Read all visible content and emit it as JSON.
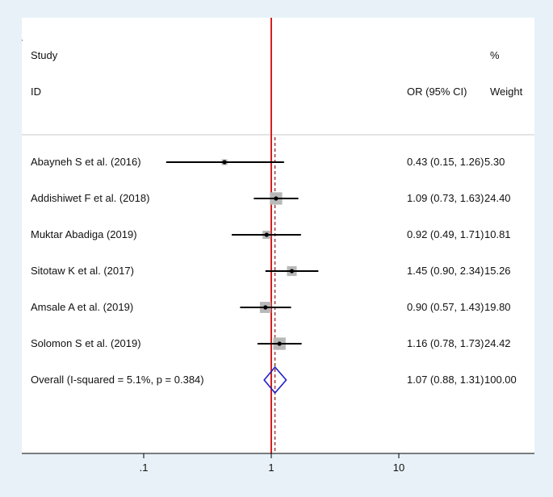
{
  "chart_data": {
    "type": "forest",
    "header": {
      "study": "Study",
      "id": "ID",
      "percent": "%",
      "or_label": "OR (95% CI)",
      "weight_label": "Weight"
    },
    "studies": [
      {
        "name": "Abayneh S et al. (2016)",
        "or": 0.43,
        "lo": 0.15,
        "hi": 1.26,
        "weight": 5.3,
        "ci_text": "0.43 (0.15, 1.26)",
        "weight_text": "5.30"
      },
      {
        "name": "Addishiwet F et al. (2018)",
        "or": 1.09,
        "lo": 0.73,
        "hi": 1.63,
        "weight": 24.4,
        "ci_text": "1.09 (0.73, 1.63)",
        "weight_text": "24.40"
      },
      {
        "name": "Muktar Abadiga (2019)",
        "or": 0.92,
        "lo": 0.49,
        "hi": 1.71,
        "weight": 10.81,
        "ci_text": "0.92 (0.49, 1.71)",
        "weight_text": "10.81"
      },
      {
        "name": "Sitotaw K et al. (2017)",
        "or": 1.45,
        "lo": 0.9,
        "hi": 2.34,
        "weight": 15.26,
        "ci_text": "1.45 (0.90, 2.34)",
        "weight_text": "15.26"
      },
      {
        "name": "Amsale A et al. (2019)",
        "or": 0.9,
        "lo": 0.57,
        "hi": 1.43,
        "weight": 19.8,
        "ci_text": "0.90 (0.57, 1.43)",
        "weight_text": "19.80"
      },
      {
        "name": "Solomon S et al. (2019)",
        "or": 1.16,
        "lo": 0.78,
        "hi": 1.73,
        "weight": 24.42,
        "ci_text": "1.16 (0.78, 1.73)",
        "weight_text": "24.42"
      }
    ],
    "overall": {
      "label": "Overall  (I-squared = 5.1%, p = 0.384)",
      "or": 1.07,
      "lo": 0.88,
      "hi": 1.31,
      "weight": 100.0,
      "ci_text": "1.07 (0.88, 1.31)",
      "weight_text": "100.00"
    },
    "x_axis": {
      "scale": "log",
      "ticks": [
        0.1,
        1,
        10
      ],
      "tick_labels": [
        ".1",
        "1",
        "10"
      ]
    },
    "null_line": 1,
    "colors": {
      "null_line": "#d42020",
      "pooled_line": "#8a1a1a",
      "diamond": "#2020c8",
      "weight_box": "#b8b8b8",
      "ci_line": "#000000",
      "background": "#e8f1f8"
    }
  }
}
